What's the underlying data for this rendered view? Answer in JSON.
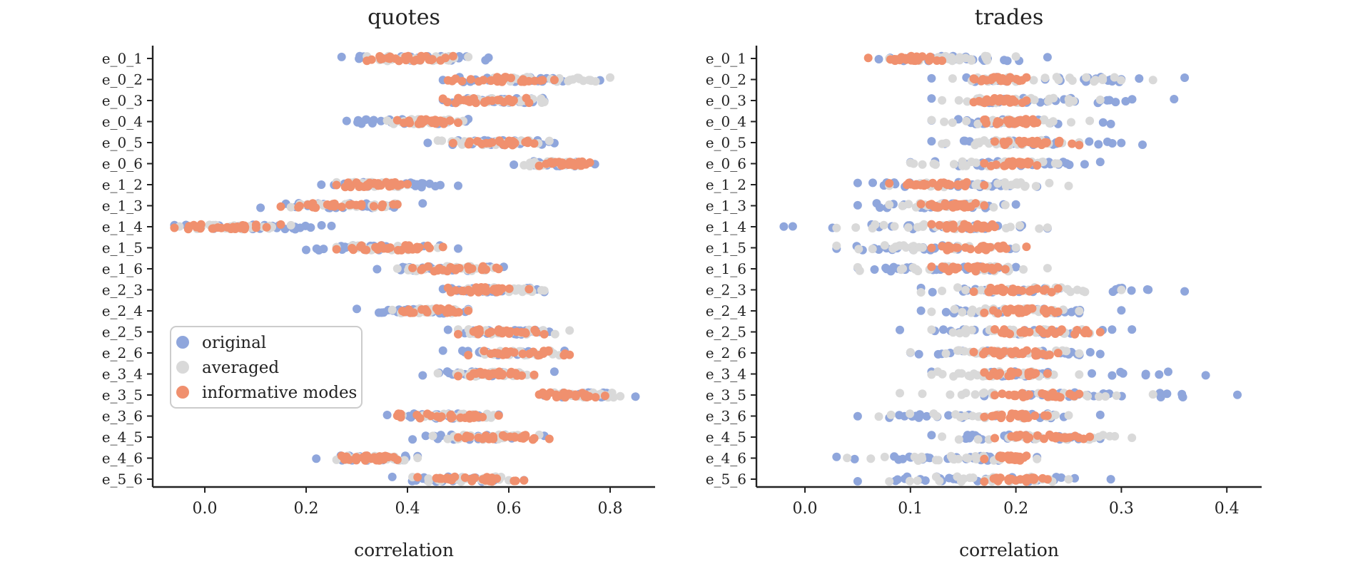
{
  "chart_data": [
    {
      "type": "scatter",
      "title": "quotes",
      "xlabel": "correlation",
      "ylabel": "",
      "xlim": [
        -0.1,
        0.9
      ],
      "xticks": [
        "0.0",
        "0.2",
        "0.4",
        "0.6",
        "0.8"
      ],
      "categories": [
        "e_0_1",
        "e_0_2",
        "e_0_3",
        "e_0_4",
        "e_0_5",
        "e_0_6",
        "e_1_2",
        "e_1_3",
        "e_1_4",
        "e_1_5",
        "e_1_6",
        "e_2_3",
        "e_2_4",
        "e_2_5",
        "e_2_6",
        "e_3_4",
        "e_3_5",
        "e_3_6",
        "e_4_5",
        "e_4_6",
        "e_5_6"
      ],
      "legend": "center-left",
      "series": [
        {
          "name": "original",
          "ranges": [
            [
              0.27,
              0.56
            ],
            [
              0.47,
              0.78
            ],
            [
              0.47,
              0.67
            ],
            [
              0.28,
              0.52
            ],
            [
              0.44,
              0.69
            ],
            [
              0.61,
              0.77
            ],
            [
              0.23,
              0.5
            ],
            [
              0.11,
              0.43
            ],
            [
              -0.06,
              0.25
            ],
            [
              0.2,
              0.5
            ],
            [
              0.34,
              0.59
            ],
            [
              0.47,
              0.67
            ],
            [
              0.3,
              0.52
            ],
            [
              0.48,
              0.68
            ],
            [
              0.47,
              0.71
            ],
            [
              0.43,
              0.69
            ],
            [
              0.67,
              0.85
            ],
            [
              0.36,
              0.58
            ],
            [
              0.41,
              0.67
            ],
            [
              0.22,
              0.42
            ],
            [
              0.37,
              0.63
            ]
          ]
        },
        {
          "name": "averaged",
          "ranges": [
            [
              0.32,
              0.52
            ],
            [
              0.55,
              0.8
            ],
            [
              0.5,
              0.67
            ],
            [
              0.36,
              0.51
            ],
            [
              0.46,
              0.68
            ],
            [
              0.63,
              0.74
            ],
            [
              0.26,
              0.4
            ],
            [
              0.17,
              0.38
            ],
            [
              -0.05,
              0.17
            ],
            [
              0.26,
              0.46
            ],
            [
              0.38,
              0.57
            ],
            [
              0.52,
              0.67
            ],
            [
              0.37,
              0.52
            ],
            [
              0.5,
              0.72
            ],
            [
              0.52,
              0.7
            ],
            [
              0.46,
              0.65
            ],
            [
              0.69,
              0.82
            ],
            [
              0.39,
              0.57
            ],
            [
              0.45,
              0.66
            ],
            [
              0.26,
              0.42
            ],
            [
              0.41,
              0.6
            ]
          ]
        },
        {
          "name": "informative modes",
          "ranges": [
            [
              0.32,
              0.49
            ],
            [
              0.48,
              0.69
            ],
            [
              0.47,
              0.64
            ],
            [
              0.38,
              0.5
            ],
            [
              0.49,
              0.65
            ],
            [
              0.66,
              0.76
            ],
            [
              0.26,
              0.4
            ],
            [
              0.15,
              0.38
            ],
            [
              -0.06,
              0.15
            ],
            [
              0.26,
              0.47
            ],
            [
              0.41,
              0.58
            ],
            [
              0.48,
              0.64
            ],
            [
              0.39,
              0.52
            ],
            [
              0.5,
              0.67
            ],
            [
              0.52,
              0.72
            ],
            [
              0.5,
              0.65
            ],
            [
              0.66,
              0.79
            ],
            [
              0.38,
              0.58
            ],
            [
              0.5,
              0.68
            ],
            [
              0.27,
              0.38
            ],
            [
              0.42,
              0.63
            ]
          ]
        }
      ]
    },
    {
      "type": "scatter",
      "title": "trades",
      "xlabel": "correlation",
      "ylabel": "",
      "xlim": [
        -0.045,
        0.43
      ],
      "xticks": [
        "0.0",
        "0.1",
        "0.2",
        "0.3",
        "0.4"
      ],
      "categories": [
        "e_0_1",
        "e_0_2",
        "e_0_3",
        "e_0_4",
        "e_0_5",
        "e_0_6",
        "e_1_2",
        "e_1_3",
        "e_1_4",
        "e_1_5",
        "e_1_6",
        "e_2_3",
        "e_2_4",
        "e_2_5",
        "e_2_6",
        "e_3_4",
        "e_3_5",
        "e_3_6",
        "e_4_5",
        "e_4_6",
        "e_5_6"
      ],
      "series": [
        {
          "name": "original",
          "ranges": [
            [
              0.07,
              0.23
            ],
            [
              0.12,
              0.36
            ],
            [
              0.12,
              0.35
            ],
            [
              0.12,
              0.29
            ],
            [
              0.12,
              0.32
            ],
            [
              0.1,
              0.28
            ],
            [
              0.05,
              0.22
            ],
            [
              0.05,
              0.2
            ],
            [
              -0.02,
              0.23
            ],
            [
              0.03,
              0.2
            ],
            [
              0.05,
              0.2
            ],
            [
              0.11,
              0.36
            ],
            [
              0.11,
              0.3
            ],
            [
              0.09,
              0.31
            ],
            [
              0.1,
              0.28
            ],
            [
              0.12,
              0.38
            ],
            [
              0.17,
              0.41
            ],
            [
              0.05,
              0.28
            ],
            [
              0.12,
              0.28
            ],
            [
              0.03,
              0.22
            ],
            [
              0.05,
              0.29
            ]
          ]
        },
        {
          "name": "averaged",
          "ranges": [
            [
              0.08,
              0.2
            ],
            [
              0.14,
              0.33
            ],
            [
              0.13,
              0.28
            ],
            [
              0.12,
              0.27
            ],
            [
              0.13,
              0.26
            ],
            [
              0.1,
              0.24
            ],
            [
              0.08,
              0.25
            ],
            [
              0.08,
              0.19
            ],
            [
              0.03,
              0.23
            ],
            [
              0.03,
              0.2
            ],
            [
              0.05,
              0.23
            ],
            [
              0.11,
              0.3
            ],
            [
              0.12,
              0.26
            ],
            [
              0.12,
              0.27
            ],
            [
              0.1,
              0.26
            ],
            [
              0.12,
              0.26
            ],
            [
              0.09,
              0.33
            ],
            [
              0.07,
              0.25
            ],
            [
              0.13,
              0.31
            ],
            [
              0.04,
              0.22
            ],
            [
              0.08,
              0.25
            ]
          ]
        },
        {
          "name": "informative modes",
          "ranges": [
            [
              0.06,
              0.13
            ],
            [
              0.16,
              0.21
            ],
            [
              0.16,
              0.21
            ],
            [
              0.17,
              0.22
            ],
            [
              0.18,
              0.26
            ],
            [
              0.17,
              0.22
            ],
            [
              0.08,
              0.17
            ],
            [
              0.11,
              0.17
            ],
            [
              0.12,
              0.18
            ],
            [
              0.12,
              0.21
            ],
            [
              0.12,
              0.19
            ],
            [
              0.16,
              0.24
            ],
            [
              0.17,
              0.24
            ],
            [
              0.18,
              0.28
            ],
            [
              0.16,
              0.24
            ],
            [
              0.17,
              0.23
            ],
            [
              0.18,
              0.26
            ],
            [
              0.17,
              0.23
            ],
            [
              0.18,
              0.27
            ],
            [
              0.17,
              0.21
            ],
            [
              0.17,
              0.23
            ]
          ]
        }
      ]
    }
  ],
  "colors": {
    "original": "#8fa6dc",
    "averaged": "#d9d9d9",
    "informative modes": "#f0906e",
    "axis": "#222222"
  }
}
